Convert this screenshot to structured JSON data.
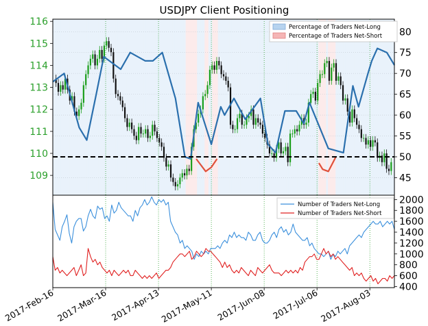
{
  "chart_data": [
    {
      "type": "line",
      "title": "USDJPY Client Positioning",
      "x_tick_labels": [
        "2017-Feb-16",
        "2017-Mar-16",
        "2017-Apr-13",
        "2017-May-11",
        "2017-Jun-08",
        "2017-Jul-06",
        "2017-Aug-03"
      ],
      "x_range": [
        "2017-Feb-16",
        "2017-Aug-16"
      ],
      "left_axis": {
        "ylim": [
          108.1,
          116.1
        ],
        "ticks": [
          "109",
          "110",
          "111",
          "112",
          "113",
          "114",
          "115",
          "116"
        ],
        "color": "#2ca02c"
      },
      "right_axis": {
        "ylim": [
          40.8,
          83.0
        ],
        "ticks": [
          "45",
          "50",
          "55",
          "60",
          "65",
          "70",
          "75",
          "80"
        ]
      },
      "legend": {
        "position": "top-right",
        "entries": [
          "Percentage of Traders Net-Long",
          "Percentage of Traders Net-Short"
        ],
        "colors": [
          "#b7d3ef",
          "#f5b5b5"
        ]
      },
      "reference_line": {
        "value": 50,
        "style": "dashed",
        "color": "#000000"
      },
      "price_closes": [
        113.2,
        112.8,
        113.1,
        112.9,
        113.4,
        112.9,
        112.4,
        112.6,
        111.9,
        111.7,
        112.0,
        112.3,
        113.1,
        113.6,
        114.0,
        114.3,
        114.5,
        114.0,
        114.3,
        114.7,
        114.3,
        114.9,
        115.1,
        114.8,
        114.6,
        113.4,
        112.7,
        112.6,
        112.4,
        112.1,
        111.6,
        111.2,
        111.4,
        111.1,
        110.8,
        110.6,
        111.2,
        110.9,
        110.9,
        111.1,
        110.7,
        110.8,
        111.3,
        111.0,
        110.7,
        110.5,
        110.3,
        109.8,
        109.4,
        109.5,
        108.9,
        108.7,
        108.5,
        108.6,
        108.9,
        109.1,
        109.0,
        109.3,
        109.2,
        110.3,
        111.1,
        111.4,
        111.8,
        112.0,
        112.6,
        112.7,
        113.1,
        113.8,
        114.0,
        113.8,
        114.2,
        114.0,
        113.6,
        113.5,
        113.3,
        113.0,
        111.3,
        111.1,
        111.1,
        111.6,
        111.8,
        111.3,
        111.3,
        111.6,
        111.7,
        112.0,
        111.3,
        111.6,
        111.4,
        111.3,
        110.9,
        110.7,
        110.4,
        110.0,
        110.0,
        109.8,
        110.2,
        110.5,
        110.0,
        110.1,
        110.3,
        109.6,
        110.9,
        110.9,
        111.1,
        111.0,
        111.3,
        111.6,
        111.3,
        111.4,
        112.3,
        112.7,
        112.8,
        112.4,
        113.2,
        113.6,
        113.6,
        114.1,
        114.2,
        113.3,
        113.9,
        114.1,
        113.3,
        113.5,
        113.1,
        112.4,
        112.5,
        111.9,
        111.4,
        112.0,
        111.6,
        111.3,
        111.1,
        110.7,
        110.7,
        110.4,
        110.6,
        110.3,
        110.6,
        110.5,
        109.8,
        109.9,
        109.6,
        110.0,
        109.3,
        109.2,
        109.6
      ],
      "series": [
        {
          "name": "Percentage of Traders Net-Long",
          "x": [
            "2017-02-16",
            "2017-02-22",
            "2017-03-02",
            "2017-03-06",
            "2017-03-11",
            "2017-03-15",
            "2017-03-24",
            "2017-03-29",
            "2017-04-02",
            "2017-04-06",
            "2017-04-10",
            "2017-04-15",
            "2017-04-22",
            "2017-04-27",
            "2017-04-30",
            "2017-05-04",
            "2017-05-11",
            "2017-05-16",
            "2017-05-18",
            "2017-05-23",
            "2017-05-29",
            "2017-06-06",
            "2017-06-10",
            "2017-06-14",
            "2017-06-19",
            "2017-06-25",
            "2017-06-29",
            "2017-07-02",
            "2017-07-12",
            "2017-07-20",
            "2017-07-25",
            "2017-07-28",
            "2017-08-02",
            "2017-08-04",
            "2017-08-07",
            "2017-08-12",
            "2017-08-16"
          ],
          "y": [
            68,
            70,
            57,
            54,
            65,
            74,
            71,
            75,
            74,
            73,
            73,
            75,
            64,
            50,
            49.5,
            63,
            53,
            62,
            60,
            64,
            59,
            64,
            53,
            51,
            61,
            61,
            58,
            63,
            52,
            51,
            67,
            62,
            70,
            73,
            76,
            75,
            72
          ]
        },
        {
          "name": "Percentage of Traders Net-Short",
          "x": [
            "2017-05-03",
            "2017-05-08",
            "2017-05-11",
            "2017-05-14",
            "2017-07-07",
            "2017-07-09",
            "2017-07-12",
            "2017-07-16"
          ],
          "y": [
            49.5,
            46.5,
            47.5,
            49.5,
            48.5,
            47,
            46.5,
            50
          ]
        }
      ]
    },
    {
      "type": "line",
      "x_range": [
        "2017-Feb-16",
        "2017-Aug-16"
      ],
      "ylim": [
        380,
        2080
      ],
      "yticks": [
        "400",
        "600",
        "800",
        "1000",
        "1200",
        "1400",
        "1600",
        "1800",
        "2000"
      ],
      "legend": {
        "position": "top-right",
        "entries": [
          "Number of Traders Net-Long",
          "Number of Traders Net-Short"
        ]
      },
      "series": [
        {
          "name": "Number of Traders Net-Long",
          "color": "#3a8fdc",
          "values": [
            1950,
            1450,
            1350,
            1250,
            1500,
            1600,
            1720,
            1380,
            1200,
            1500,
            1600,
            1650,
            1650,
            1420,
            1500,
            1700,
            1820,
            1700,
            1650,
            1880,
            1820,
            1850,
            1650,
            1700,
            1600,
            1900,
            1750,
            1800,
            1950,
            1850,
            1800,
            1750,
            1700,
            1700,
            1600,
            1800,
            1700,
            1850,
            1900,
            2000,
            1900,
            1950,
            2050,
            1950,
            1900,
            2000,
            1950,
            2000,
            1900,
            1950,
            1600,
            1500,
            1400,
            1350,
            1200,
            1250,
            1100,
            1150,
            1100,
            1050,
            900,
            1000,
            950,
            1050,
            1000,
            1050,
            1000,
            1100,
            1100,
            1100,
            1150,
            1100,
            1200,
            1250,
            1200,
            1350,
            1300,
            1400,
            1300,
            1350,
            1300,
            1300,
            1250,
            1400,
            1350,
            1250,
            1250,
            1350,
            1400,
            1250,
            1200,
            1200,
            1250,
            1350,
            1400,
            1300,
            1450,
            1500,
            1400,
            1450,
            1350,
            1400,
            1550,
            1400,
            1350,
            1300,
            1250,
            1250,
            1300,
            1150,
            1200,
            1100,
            1050,
            1000,
            1000,
            950,
            1000,
            1050,
            900,
            1000,
            950,
            1050,
            1000,
            1050,
            1100,
            1000,
            1150,
            1200,
            1250,
            1300,
            1350,
            1300,
            1400,
            1450,
            1500,
            1550,
            1600,
            1550,
            1550,
            1600,
            1500,
            1550,
            1600,
            1550,
            1600,
            1450
          ]
        },
        {
          "name": "Number of Traders Net-Short",
          "color": "#e02020",
          "values": [
            950,
            700,
            750,
            650,
            700,
            650,
            600,
            650,
            700,
            750,
            600,
            700,
            800,
            600,
            650,
            1100,
            950,
            850,
            900,
            800,
            850,
            750,
            700,
            650,
            700,
            600,
            700,
            650,
            600,
            650,
            700,
            650,
            700,
            600,
            600,
            700,
            650,
            600,
            550,
            600,
            550,
            600,
            550,
            600,
            650,
            550,
            600,
            650,
            700,
            700,
            750,
            850,
            900,
            950,
            1000,
            1000,
            950,
            1000,
            1050,
            900,
            950,
            1050,
            1000,
            950,
            1000,
            1100,
            1050,
            1050,
            1000,
            950,
            900,
            850,
            750,
            850,
            750,
            800,
            700,
            650,
            700,
            650,
            750,
            700,
            650,
            600,
            700,
            650,
            600,
            750,
            700,
            650,
            700,
            750,
            800,
            700,
            650,
            650,
            650,
            600,
            650,
            700,
            650,
            700,
            650,
            700,
            650,
            750,
            700,
            850,
            900,
            950,
            950,
            1000,
            900,
            900,
            1000,
            1100,
            1000,
            1050,
            950,
            1000,
            900,
            950,
            900,
            850,
            800,
            750,
            700,
            750,
            600,
            650,
            600,
            650,
            550,
            500,
            550,
            600,
            500,
            550,
            450,
            500,
            550,
            550,
            500,
            600,
            550,
            600
          ]
        }
      ]
    }
  ]
}
